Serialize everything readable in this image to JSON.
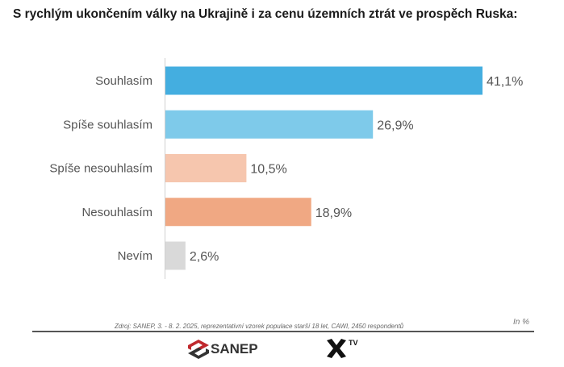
{
  "title": "S rychlým ukončením války na Ukrajině i za cenu územních ztrát ve prospěch Ruska:",
  "chart_data": {
    "type": "bar",
    "orientation": "horizontal",
    "categories": [
      "Souhlasím",
      "Spíše souhlasím",
      "Spíše nesouhlasím",
      "Nesouhlasím",
      "Nevím"
    ],
    "values": [
      41.1,
      26.9,
      10.5,
      18.9,
      2.6
    ],
    "value_labels": [
      "41,1%",
      "26,9%",
      "10,5%",
      "18,9%",
      "2,6%"
    ],
    "colors": [
      "#44aee0",
      "#7ecaea",
      "#f6c6ae",
      "#f0a883",
      "#d9d9d9"
    ],
    "xlim": [
      0,
      50
    ],
    "grid": false,
    "legend": "none"
  },
  "source": "Zdroj: SANEP, 3. - 8. 2. 2025, reprezentativní vzorek populace starší 18 let, CAWI, 2450 respondentů",
  "unit": "In %",
  "logos": {
    "sanep": {
      "text": "SANEP",
      "icon": "sanep-logo-icon",
      "color": "#c0282d"
    },
    "xtv": {
      "icon": "x-logo-icon",
      "text": "TV"
    }
  }
}
